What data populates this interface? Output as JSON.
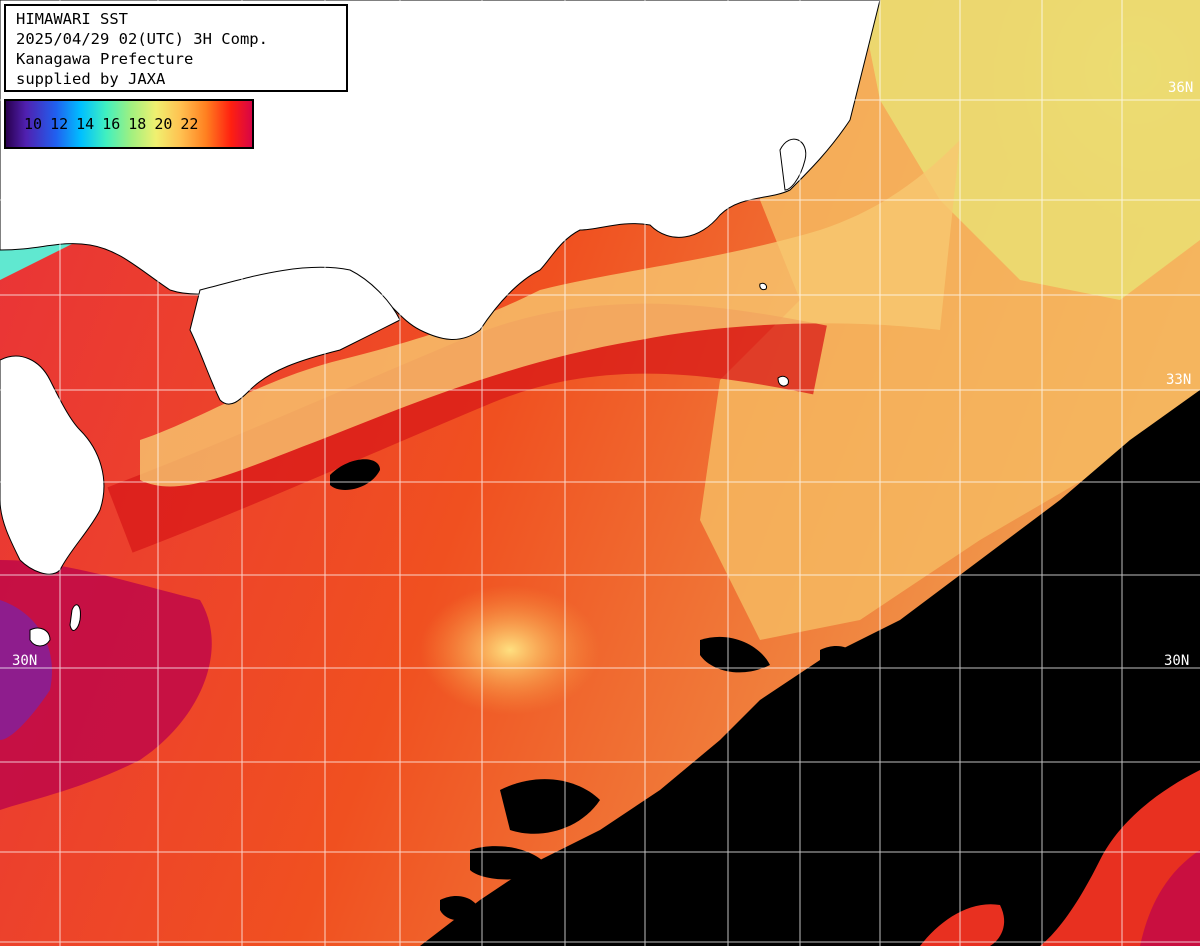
{
  "header": {
    "lines": [
      "HIMAWARI SST",
      "2025/04/29 02(UTC) 3H Comp.",
      "Kanagawa Prefecture",
      "supplied by JAXA"
    ]
  },
  "scale": {
    "ticks": [
      "10",
      "12",
      "14",
      "16",
      "18",
      "20",
      "22"
    ],
    "colors": [
      "#1a0040",
      "#4a1aa0",
      "#2050e0",
      "#00b0ff",
      "#30e0c0",
      "#80f080",
      "#e0f060",
      "#ffc040",
      "#ff8020",
      "#ff3010",
      "#d00030",
      "#c00060"
    ]
  },
  "lat_labels": {
    "n36": "36N",
    "n33": "33N",
    "n30_left": "30N",
    "n30_right": "30N"
  },
  "colors": {
    "land": "#ffffff",
    "no_data": "#000000",
    "grid": "#ffffff"
  }
}
